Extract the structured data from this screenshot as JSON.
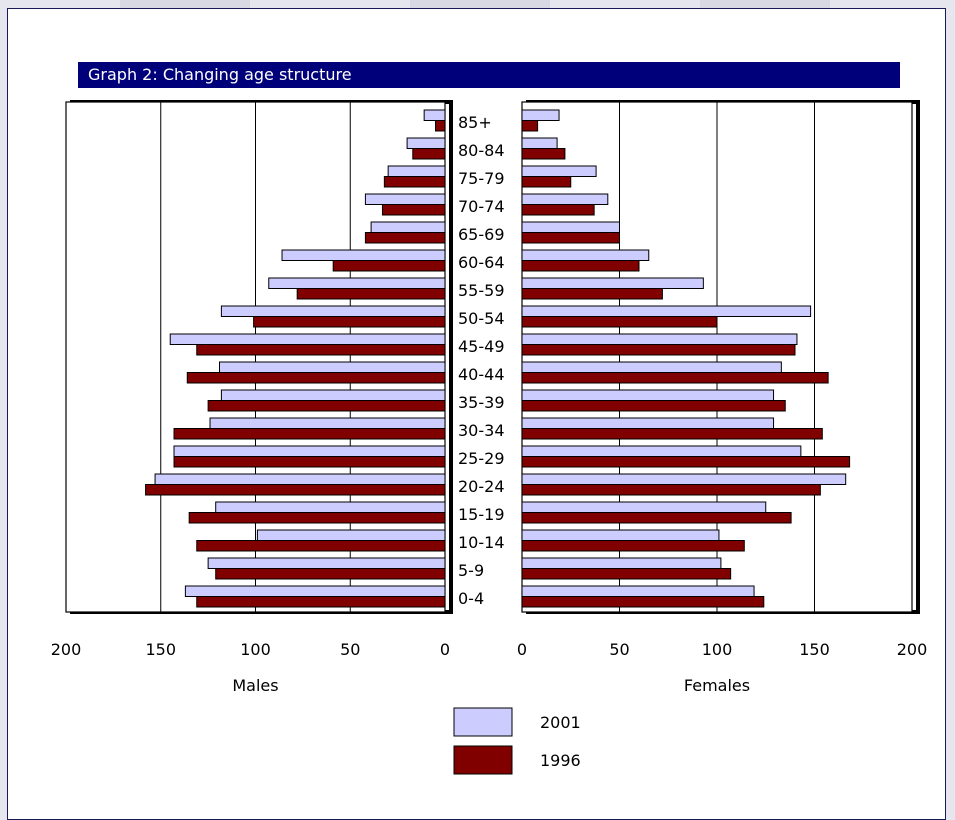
{
  "title": "Graph 2: Changing age structure",
  "colors": {
    "background": "#e6e6ee",
    "frame_border": "#1a1a5a",
    "title_bar": "#00007a",
    "series_2001": "#ccccff",
    "series_1996": "#800000"
  },
  "chart_data": {
    "type": "bar",
    "orientation": "horizontal",
    "layout": "population-pyramid",
    "categories": [
      "85+",
      "80-84",
      "75-79",
      "70-74",
      "65-69",
      "60-64",
      "55-59",
      "50-54",
      "45-49",
      "40-44",
      "35-39",
      "30-34",
      "25-29",
      "20-24",
      "15-19",
      "10-14",
      "5-9",
      "0-4"
    ],
    "panels": [
      {
        "name": "Males",
        "xlabel": "Males",
        "xlim": [
          0,
          200
        ],
        "xticks": [
          "200",
          "150",
          "100",
          "50",
          "0"
        ],
        "direction": "reversed",
        "series": [
          {
            "name": "2001",
            "color": "#ccccff",
            "values": [
              11,
              20,
              30,
              42,
              39,
              86,
              93,
              118,
              145,
              119,
              118,
              124,
              143,
              153,
              121,
              99,
              125,
              137
            ]
          },
          {
            "name": "1996",
            "color": "#800000",
            "values": [
              5,
              17,
              32,
              33,
              42,
              59,
              78,
              101,
              131,
              136,
              125,
              143,
              143,
              158,
              135,
              131,
              121,
              131
            ]
          }
        ]
      },
      {
        "name": "Females",
        "xlabel": "Females",
        "xlim": [
          0,
          200
        ],
        "xticks": [
          "0",
          "50",
          "100",
          "150",
          "200"
        ],
        "direction": "normal",
        "series": [
          {
            "name": "2001",
            "color": "#ccccff",
            "values": [
              19,
              18,
              38,
              44,
              50,
              65,
              93,
              148,
              141,
              133,
              129,
              129,
              143,
              166,
              125,
              101,
              102,
              119
            ]
          },
          {
            "name": "1996",
            "color": "#800000",
            "values": [
              8,
              22,
              25,
              37,
              50,
              60,
              72,
              100,
              140,
              157,
              135,
              154,
              168,
              153,
              138,
              114,
              107,
              124
            ]
          }
        ]
      }
    ],
    "legend": {
      "placement": "bottom-center",
      "entries": [
        {
          "label": "2001",
          "color": "#ccccff"
        },
        {
          "label": "1996",
          "color": "#800000"
        }
      ]
    },
    "grid": true
  }
}
